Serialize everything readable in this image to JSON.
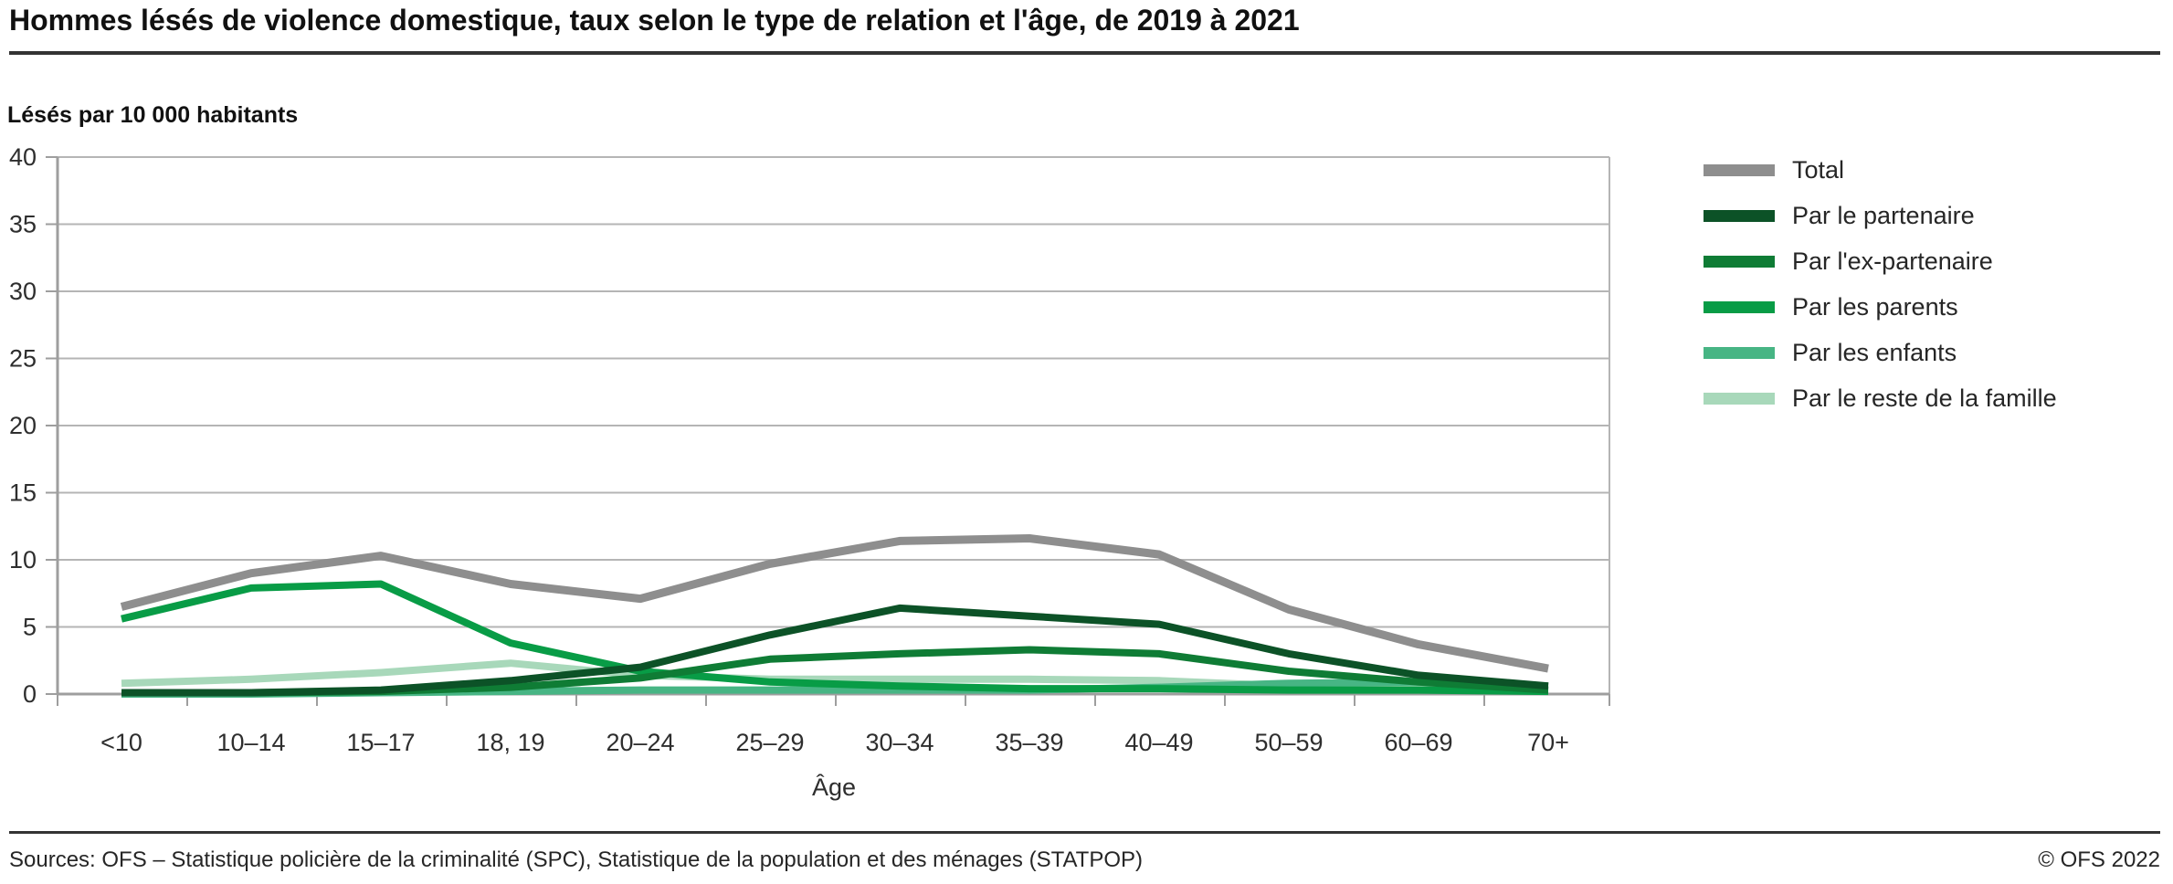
{
  "title": "Hommes lésés de violence domestique, taux selon le type de relation et l'âge, de 2019 à 2021",
  "subtitle": "Lésés par 10 000 habitants",
  "footer": {
    "sources": "Sources: OFS – Statistique policière de la criminalité (SPC), Statistique de la population et des ménages (STATPOP)",
    "copyright": "© OFS 2022"
  },
  "colors": {
    "grid": "#b5b5b5",
    "axis": "#9e9e9e",
    "tick_label": "#2e2e2e",
    "divider": "#333333"
  },
  "chart_data": {
    "type": "line",
    "title": "Hommes lésés de violence domestique, taux selon le type de relation et l'âge, de 2019 à 2021",
    "subtitle": "Lésés par 10 000 habitants",
    "xlabel": "Âge",
    "ylabel": "Lésés par 10 000 habitants",
    "ylim": [
      0,
      40
    ],
    "ytick_step": 5,
    "grid": true,
    "legend_position": "right",
    "categories": [
      "<10",
      "10–14",
      "15–17",
      "18, 19",
      "20–24",
      "25–29",
      "30–34",
      "35–39",
      "40–49",
      "50–59",
      "60–69",
      "70+"
    ],
    "series": [
      {
        "name": "Total",
        "color": "#8e8e8e",
        "stroke_width": 9,
        "values": [
          6.5,
          9.0,
          10.3,
          8.2,
          7.1,
          9.7,
          11.4,
          11.6,
          10.4,
          6.3,
          3.7,
          1.9
        ]
      },
      {
        "name": "Par le partenaire",
        "color": "#0c5227",
        "stroke_width": 8,
        "values": [
          0.1,
          0.1,
          0.3,
          1.0,
          2.0,
          4.4,
          6.4,
          5.8,
          5.2,
          3.0,
          1.4,
          0.6
        ]
      },
      {
        "name": "Par l'ex-partenaire",
        "color": "#0f7c35",
        "stroke_width": 8,
        "values": [
          0.1,
          0.1,
          0.2,
          0.5,
          1.2,
          2.6,
          3.0,
          3.3,
          3.0,
          1.7,
          0.9,
          0.3
        ]
      },
      {
        "name": "Par les parents",
        "color": "#089c46",
        "stroke_width": 8,
        "values": [
          5.6,
          7.9,
          8.2,
          3.8,
          1.7,
          0.9,
          0.6,
          0.4,
          0.4,
          0.3,
          0.3,
          0.2
        ]
      },
      {
        "name": "Par les enfants",
        "color": "#47b584",
        "stroke_width": 8,
        "values": [
          0.0,
          0.0,
          0.1,
          0.2,
          0.3,
          0.3,
          0.3,
          0.3,
          0.5,
          0.8,
          0.9,
          0.6
        ]
      },
      {
        "name": "Par le reste de la famille",
        "color": "#a8d8ba",
        "stroke_width": 8,
        "values": [
          0.8,
          1.1,
          1.6,
          2.3,
          1.4,
          1.1,
          1.1,
          1.1,
          1.0,
          0.6,
          0.4,
          0.3
        ]
      }
    ]
  }
}
